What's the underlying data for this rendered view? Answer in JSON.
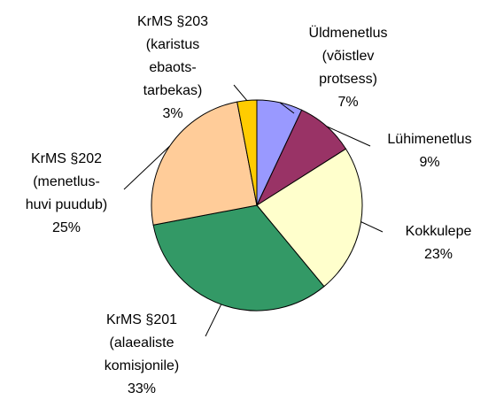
{
  "chart_data": {
    "type": "pie",
    "categories": [
      "Üldmenetlus\n(võistlev\nprotsess)",
      "Lühimenetlus",
      "Kokkulepe",
      "KrMS §201\n(alaealiste\nkomisjonile)",
      "KrMS §202\n(menetlus-\nhuvi puudub)",
      "KrMS §203\n(karistus\nebaots-\ntarbekas)"
    ],
    "values": [
      7,
      9,
      23,
      33,
      25,
      3
    ],
    "value_labels": [
      "7%",
      "9%",
      "23%",
      "33%",
      "25%",
      "3%"
    ],
    "colors": [
      "#9999ff",
      "#993366",
      "#ffffcc",
      "#339966",
      "#ffcc99",
      "#ffcc00"
    ]
  }
}
